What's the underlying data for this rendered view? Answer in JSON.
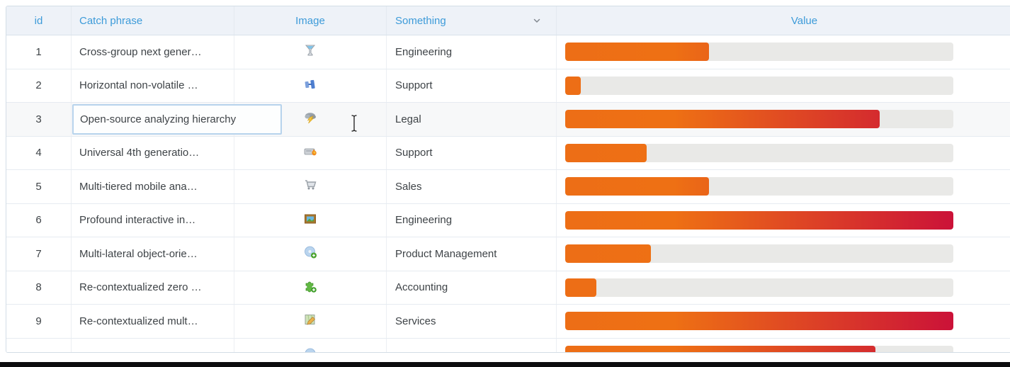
{
  "table": {
    "columns": [
      {
        "key": "id",
        "label": "id"
      },
      {
        "key": "catch_phrase",
        "label": "Catch phrase"
      },
      {
        "key": "image",
        "label": "Image"
      },
      {
        "key": "something",
        "label": "Something",
        "sort_icon": "chevron-down"
      },
      {
        "key": "value",
        "label": "Value"
      }
    ],
    "rows": [
      {
        "id": "1",
        "catch_phrase": "Cross-group next gener…",
        "icon": "funnel",
        "something": "Engineering",
        "value_pct": 37
      },
      {
        "id": "2",
        "catch_phrase": "Horizontal non-volatile …",
        "icon": "blue-bricks",
        "something": "Support",
        "value_pct": 4
      },
      {
        "id": "3",
        "catch_phrase": "Open-source analyzing hierarchy",
        "icon": "storm-cloud",
        "something": "Legal",
        "value_pct": 81,
        "state": "editing"
      },
      {
        "id": "4",
        "catch_phrase": "Universal 4th generatio…",
        "icon": "drive-burn",
        "something": "Support",
        "value_pct": 21
      },
      {
        "id": "5",
        "catch_phrase": "Multi-tiered mobile ana…",
        "icon": "shopping-cart",
        "something": "Sales",
        "value_pct": 37
      },
      {
        "id": "6",
        "catch_phrase": "Profound interactive in…",
        "icon": "picture-frame",
        "something": "Engineering",
        "value_pct": 100
      },
      {
        "id": "7",
        "catch_phrase": "Multi-lateral object-orie…",
        "icon": "cd-add",
        "something": "Product Management",
        "value_pct": 22
      },
      {
        "id": "8",
        "catch_phrase": "Re-contextualized zero …",
        "icon": "puzzle-add",
        "something": "Accounting",
        "value_pct": 8
      },
      {
        "id": "9",
        "catch_phrase": "Re-contextualized mult…",
        "icon": "map-edit",
        "something": "Services",
        "value_pct": 100
      },
      {
        "id": "",
        "catch_phrase": "",
        "icon": "cd",
        "something": "",
        "value_pct": 80,
        "partial": true
      }
    ]
  },
  "editor": {
    "text": "Open-source analyzing hierarchy"
  },
  "colors": {
    "header_text": "#3D9BD9",
    "header_bg": "#EEF2F8",
    "bar_start": "#ED6E16",
    "bar_end": "#CB1238",
    "bar_track": "#E9E9E7",
    "cell_text": "#3E4347"
  }
}
